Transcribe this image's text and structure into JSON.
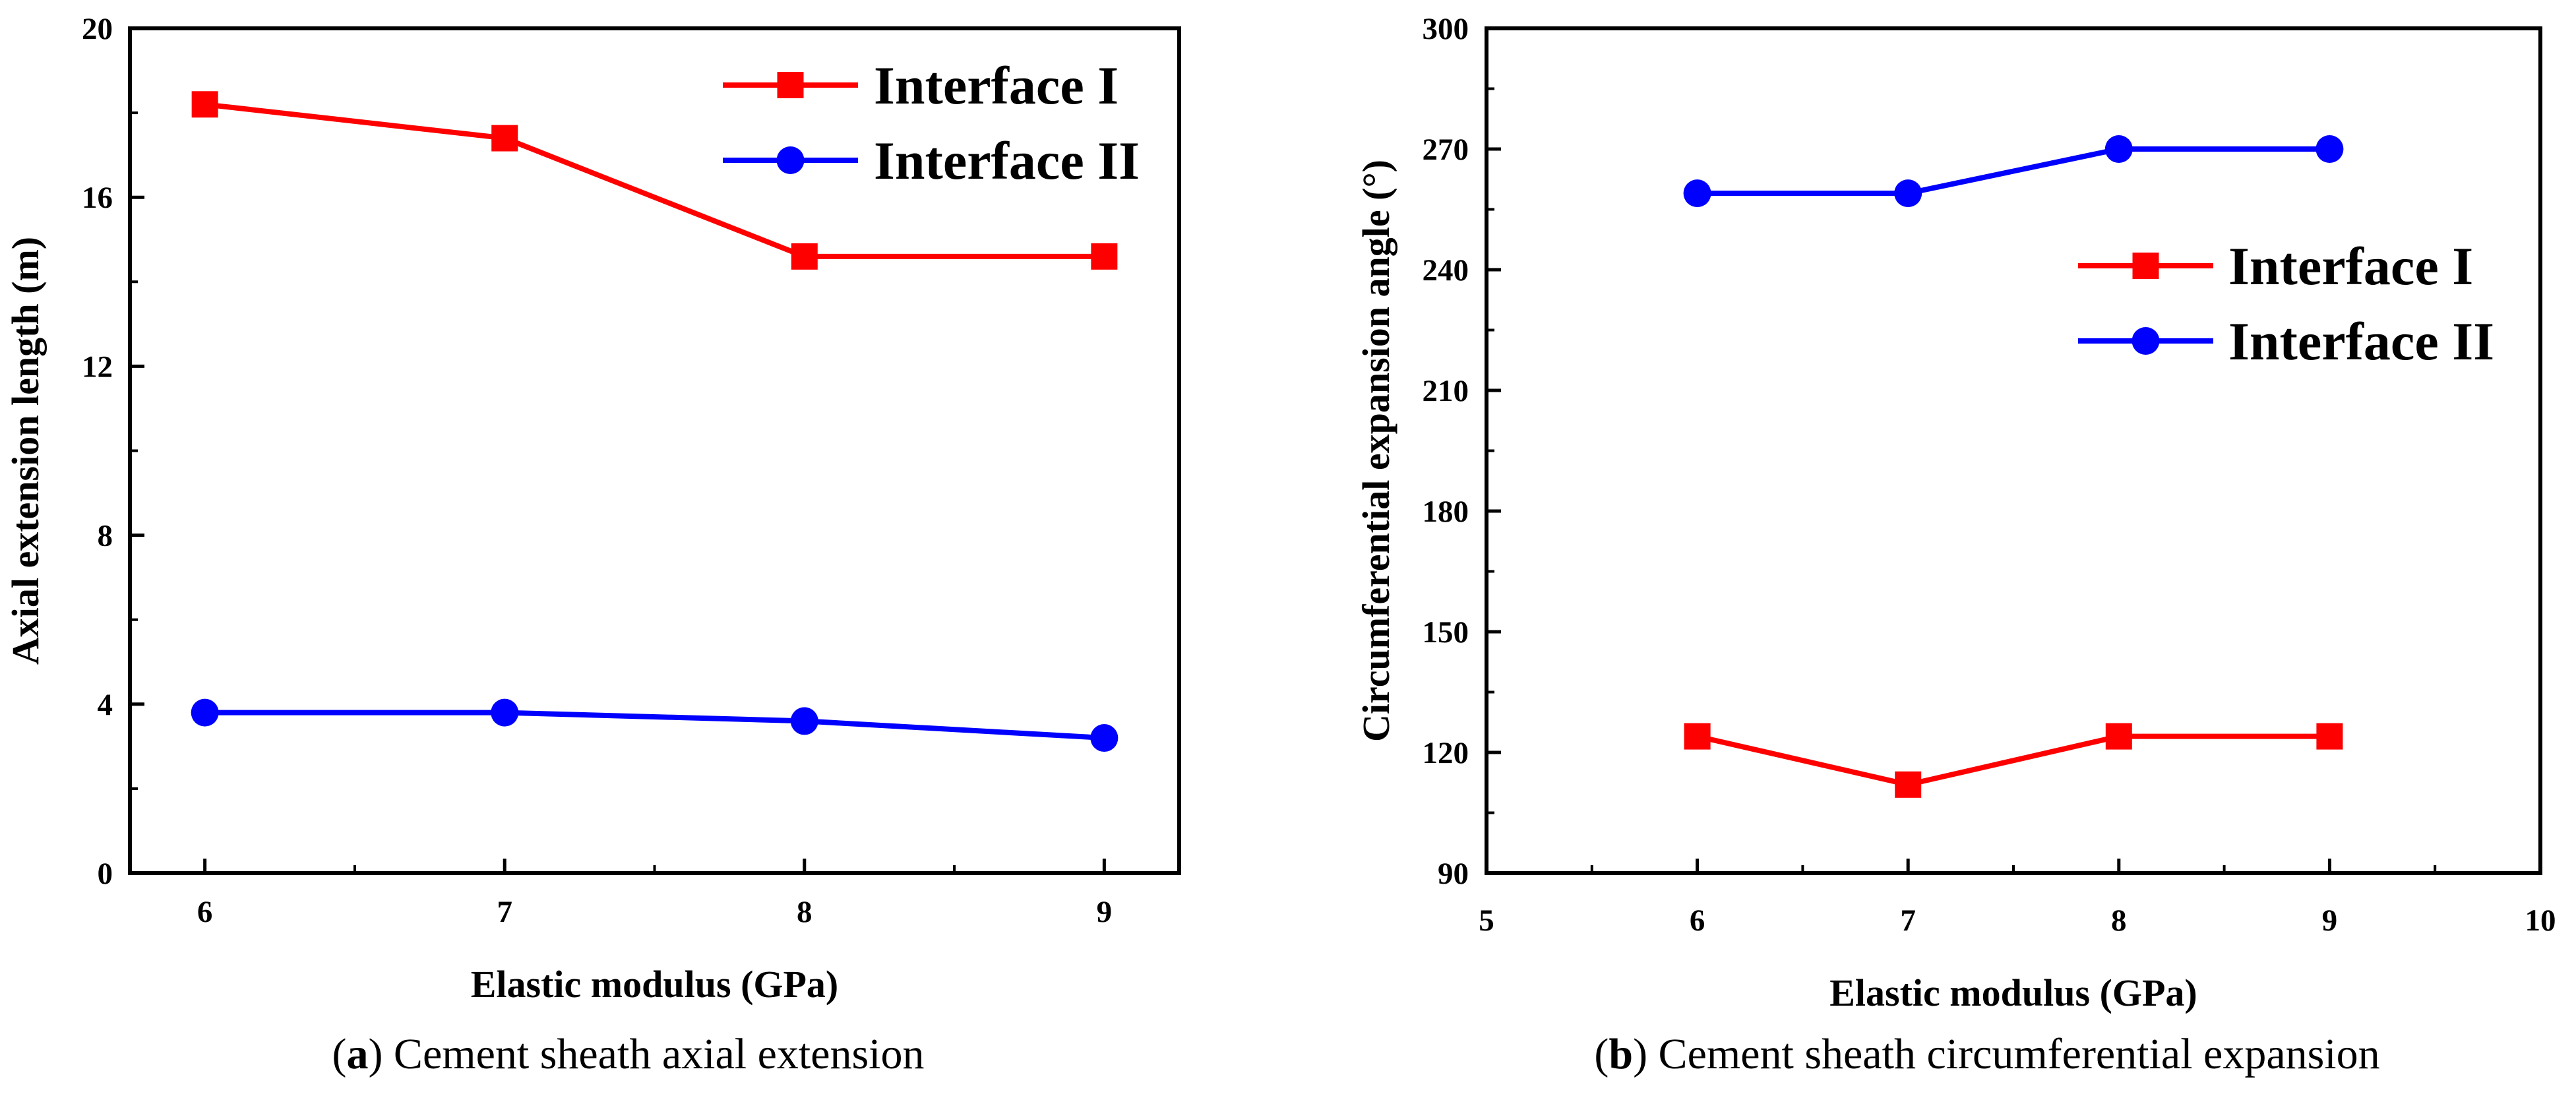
{
  "chart_data": [
    {
      "id": "a",
      "type": "line",
      "title": "",
      "caption_letter": "a",
      "caption_text": " Cement sheath axial extension",
      "xlabel": "Elastic modulus (GPa)",
      "ylabel": "Axial extension length (m)",
      "xlim": [
        5.75,
        9.25
      ],
      "ylim": [
        0,
        20
      ],
      "xticks": [
        6,
        7,
        8,
        9
      ],
      "yticks": [
        0,
        4,
        8,
        12,
        16,
        20
      ],
      "legend_position": "top-right",
      "series": [
        {
          "name": "Interface I",
          "color": "#ff0000",
          "marker": "square",
          "x": [
            6,
            7,
            8,
            9
          ],
          "y": [
            18.2,
            17.4,
            14.6,
            14.6
          ]
        },
        {
          "name": "Interface II",
          "color": "#0000ff",
          "marker": "circle",
          "x": [
            6,
            7,
            8,
            9
          ],
          "y": [
            3.8,
            3.8,
            3.6,
            3.2
          ]
        }
      ]
    },
    {
      "id": "b",
      "type": "line",
      "title": "",
      "caption_letter": "b",
      "caption_text": " Cement sheath circumferential expansion",
      "xlabel": "Elastic modulus (GPa)",
      "ylabel": "Circumferential expansion angle (°)",
      "xlim": [
        5,
        10
      ],
      "ylim": [
        90,
        300
      ],
      "xticks": [
        5,
        6,
        7,
        8,
        9,
        10
      ],
      "yticks": [
        90,
        120,
        150,
        180,
        210,
        240,
        270,
        300
      ],
      "legend_position": "upper-right",
      "series": [
        {
          "name": "Interface I",
          "color": "#ff0000",
          "marker": "square",
          "x": [
            6,
            7,
            8,
            9
          ],
          "y": [
            124,
            112,
            124,
            124
          ]
        },
        {
          "name": "Interface II",
          "color": "#0000ff",
          "marker": "circle",
          "x": [
            6,
            7,
            8,
            9
          ],
          "y": [
            259,
            259,
            270,
            270
          ]
        }
      ]
    }
  ]
}
